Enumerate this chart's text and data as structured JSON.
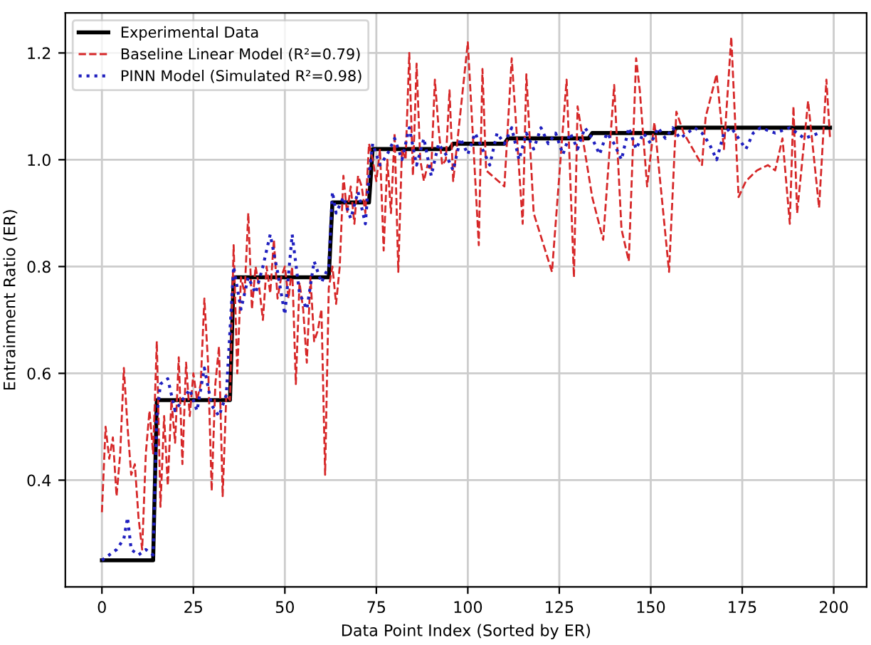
{
  "chart_data": {
    "type": "line",
    "xlabel": "Data Point Index (Sorted by ER)",
    "ylabel": "Entrainment Ratio (ER)",
    "xlim": [
      -10,
      209
    ],
    "ylim": [
      0.2,
      1.275
    ],
    "xticks": [
      0,
      25,
      50,
      75,
      100,
      125,
      150,
      175,
      200
    ],
    "yticks": [
      0.4,
      0.6,
      0.8,
      {
        "value": 1.0,
        "label": "1.0"
      },
      1.2
    ],
    "grid": true,
    "legend": "top left",
    "series": [
      {
        "name": "Experimental Data",
        "color": "#000000",
        "line_style": "solid",
        "x": [
          0,
          14,
          15,
          35,
          36,
          62,
          63,
          73,
          74,
          95,
          96,
          110,
          111,
          133,
          134,
          156,
          157,
          199
        ],
        "values": [
          0.25,
          0.25,
          0.55,
          0.55,
          0.78,
          0.78,
          0.92,
          0.92,
          1.02,
          1.02,
          1.03,
          1.03,
          1.04,
          1.04,
          1.05,
          1.05,
          1.06,
          1.06
        ]
      },
      {
        "name": "Baseline Linear Model (R²=0.79)",
        "color": "#d62728",
        "line_style": "dashed",
        "x": [
          0,
          1,
          2,
          3,
          4,
          5,
          6,
          7,
          8,
          9,
          10,
          11,
          12,
          13,
          14,
          15,
          16,
          17,
          18,
          19,
          20,
          21,
          22,
          23,
          24,
          25,
          26,
          27,
          28,
          29,
          30,
          31,
          32,
          33,
          34,
          35,
          36,
          37,
          38,
          39,
          40,
          41,
          42,
          43,
          44,
          45,
          46,
          47,
          48,
          49,
          50,
          51,
          52,
          53,
          54,
          55,
          56,
          57,
          58,
          59,
          60,
          61,
          62,
          63,
          64,
          65,
          66,
          67,
          68,
          69,
          70,
          71,
          72,
          73,
          74,
          75,
          76,
          77,
          78,
          79,
          80,
          81,
          82,
          83,
          84,
          85,
          86,
          87,
          88,
          89,
          90,
          91,
          92,
          93,
          94,
          95,
          96,
          100,
          103,
          104,
          105,
          110,
          112,
          115,
          116,
          118,
          123,
          127,
          129,
          130,
          134,
          137,
          140,
          142,
          144,
          146,
          147,
          149,
          151,
          155,
          157,
          159,
          164,
          165,
          168,
          170,
          172,
          174,
          176,
          179,
          182,
          184,
          186,
          188,
          189,
          190,
          193,
          196,
          198,
          199
        ],
        "values": [
          0.34,
          0.5,
          0.44,
          0.48,
          0.37,
          0.45,
          0.61,
          0.5,
          0.41,
          0.43,
          0.33,
          0.27,
          0.45,
          0.53,
          0.45,
          0.66,
          0.35,
          0.52,
          0.39,
          0.55,
          0.47,
          0.63,
          0.43,
          0.62,
          0.52,
          0.6,
          0.55,
          0.58,
          0.74,
          0.62,
          0.38,
          0.58,
          0.65,
          0.37,
          0.56,
          0.55,
          0.84,
          0.6,
          0.78,
          0.75,
          0.9,
          0.72,
          0.8,
          0.76,
          0.7,
          0.8,
          0.75,
          0.85,
          0.74,
          0.78,
          0.8,
          0.74,
          0.8,
          0.58,
          0.77,
          0.72,
          0.62,
          0.78,
          0.66,
          0.68,
          0.72,
          0.41,
          0.76,
          0.8,
          0.73,
          0.8,
          0.97,
          0.9,
          0.95,
          0.88,
          0.97,
          0.95,
          0.9,
          1.03,
          1.0,
          0.96,
          1.02,
          0.83,
          1.0,
          0.9,
          1.05,
          0.79,
          1.02,
          1.0,
          1.2,
          0.97,
          1.18,
          1.0,
          0.96,
          0.99,
          0.98,
          1.15,
          1.06,
          0.99,
          1.0,
          1.13,
          0.96,
          1.22,
          0.84,
          1.17,
          0.98,
          0.95,
          1.19,
          0.88,
          1.16,
          0.9,
          0.79,
          1.15,
          0.78,
          1.1,
          0.93,
          0.85,
          1.14,
          0.87,
          0.81,
          1.19,
          1.13,
          0.95,
          1.07,
          0.79,
          1.09,
          1.05,
          0.99,
          1.08,
          1.16,
          1.02,
          1.23,
          0.93,
          0.96,
          0.98,
          0.99,
          0.98,
          1.04,
          0.88,
          1.1,
          0.9,
          1.11,
          0.91,
          1.15,
          1.04
        ]
      },
      {
        "name": "PINN Model (Simulated R²=0.98)",
        "color": "#1f1fbf",
        "line_style": "dotted",
        "x": [
          0,
          2,
          4,
          6,
          7,
          8,
          10,
          12,
          14,
          15,
          16,
          18,
          20,
          22,
          24,
          26,
          28,
          30,
          32,
          34,
          36,
          38,
          40,
          42,
          44,
          46,
          48,
          50,
          52,
          54,
          56,
          58,
          60,
          62,
          63,
          64,
          66,
          68,
          70,
          72,
          73,
          74,
          76,
          78,
          80,
          82,
          84,
          86,
          88,
          90,
          92,
          94,
          96,
          98,
          100,
          102,
          104,
          106,
          108,
          110,
          112,
          114,
          116,
          118,
          120,
          122,
          124,
          126,
          128,
          130,
          132,
          134,
          136,
          138,
          140,
          142,
          144,
          146,
          148,
          150,
          152,
          154,
          156,
          158,
          160,
          162,
          164,
          166,
          168,
          170,
          172,
          174,
          176,
          178,
          180,
          184,
          188,
          192,
          196
        ],
        "values": [
          0.25,
          0.26,
          0.27,
          0.29,
          0.33,
          0.27,
          0.26,
          0.27,
          0.26,
          0.52,
          0.58,
          0.59,
          0.53,
          0.55,
          0.57,
          0.53,
          0.61,
          0.54,
          0.52,
          0.56,
          0.8,
          0.72,
          0.78,
          0.75,
          0.8,
          0.86,
          0.79,
          0.71,
          0.86,
          0.75,
          0.72,
          0.81,
          0.77,
          0.8,
          0.94,
          0.9,
          0.93,
          0.89,
          0.94,
          0.88,
          0.97,
          1.03,
          0.99,
          1.01,
          1.04,
          1.0,
          1.06,
          0.99,
          1.04,
          0.97,
          1.03,
          1.01,
          0.98,
          1.04,
          1.01,
          1.05,
          1.02,
          0.99,
          1.05,
          1.03,
          1.06,
          1.0,
          1.05,
          1.02,
          1.06,
          1.03,
          1.05,
          1.01,
          1.05,
          1.02,
          1.06,
          1.04,
          1.01,
          1.05,
          1.03,
          1.0,
          1.06,
          1.02,
          1.05,
          1.03,
          1.06,
          1.04,
          1.06,
          1.04,
          1.05,
          1.06,
          1.05,
          1.03,
          1.0,
          1.05,
          1.06,
          1.04,
          1.02,
          1.05,
          1.06,
          1.05,
          1.06,
          1.04,
          1.05
        ]
      }
    ]
  }
}
